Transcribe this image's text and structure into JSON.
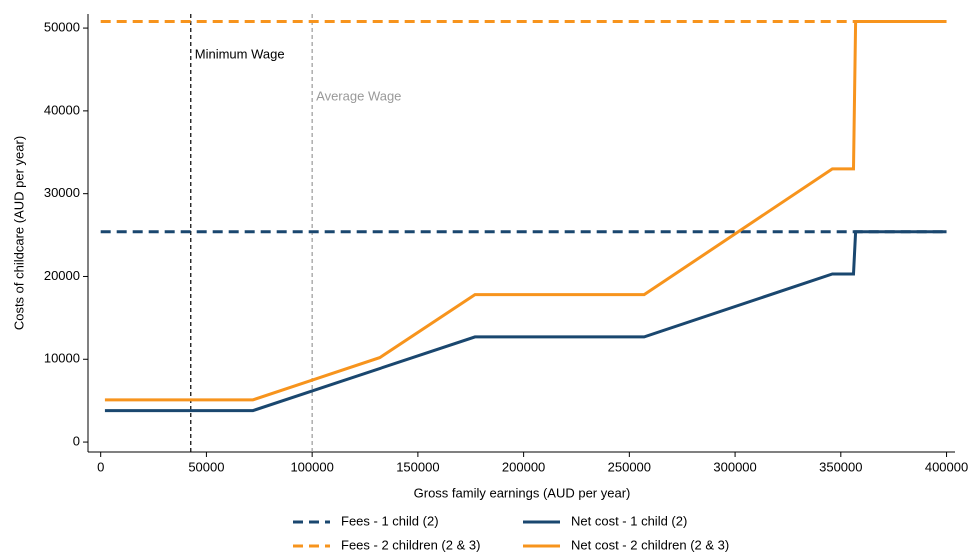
{
  "chart_data": {
    "type": "line",
    "xlabel": "Gross family earnings (AUD per year)",
    "ylabel": "Costs of childcare (AUD per year)",
    "xlim": [
      -6000,
      404000
    ],
    "xticks": [
      0,
      50000,
      100000,
      150000,
      200000,
      250000,
      300000,
      350000,
      400000
    ],
    "ylim": [
      -1200,
      51700
    ],
    "yticks": [
      0,
      10000,
      20000,
      30000,
      40000,
      50000
    ],
    "grid": false,
    "legend": "bottom",
    "vlines": [
      {
        "x": 42600,
        "label": "Minimum Wage",
        "color": "#000000"
      },
      {
        "x": 100000,
        "label": "Average Wage",
        "color": "#999999"
      }
    ],
    "series": [
      {
        "name": "Fees - 1 child (2)",
        "color": "#1a476f",
        "style": "dashed",
        "x": [
          0,
          400000
        ],
        "values": [
          25400,
          25400
        ]
      },
      {
        "name": "Fees - 2 children (2 & 3)",
        "color": "#f7941d",
        "style": "dashed",
        "x": [
          0,
          400000
        ],
        "values": [
          50800,
          50800
        ]
      },
      {
        "name": "Net cost - 1 child (2)",
        "color": "#1a476f",
        "style": "solid",
        "x": [
          2000,
          72000,
          177000,
          257000,
          346000,
          356000,
          357000,
          400000
        ],
        "values": [
          3800,
          3800,
          12700,
          12700,
          20300,
          20300,
          25400,
          25400
        ]
      },
      {
        "name": "Net cost - 2 children (2 & 3)",
        "color": "#f7941d",
        "style": "solid",
        "x": [
          2000,
          72000,
          132000,
          177000,
          257000,
          346000,
          356000,
          357000,
          400000
        ],
        "values": [
          5100,
          5100,
          10200,
          17800,
          17800,
          33000,
          33000,
          50800,
          50800
        ]
      }
    ]
  }
}
